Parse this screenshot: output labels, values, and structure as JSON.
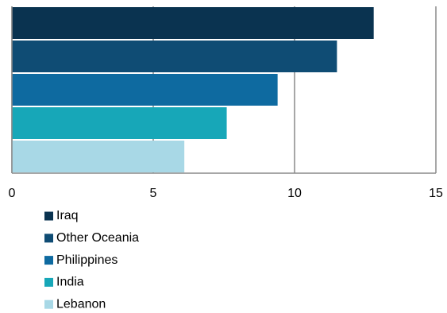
{
  "chart_data": {
    "type": "hbar",
    "categories": [
      "Iraq",
      "Other Oceania",
      "Philippines",
      "India",
      "Lebanon"
    ],
    "values": [
      12.8,
      11.5,
      9.4,
      7.6,
      6.1
    ],
    "colors": [
      "#0a3350",
      "#0f4c74",
      "#0e6aa0",
      "#17a7b8",
      "#a8d8e6"
    ],
    "xlim": [
      0,
      15
    ],
    "xticks": [
      0,
      5,
      10,
      15
    ],
    "grid": true
  }
}
